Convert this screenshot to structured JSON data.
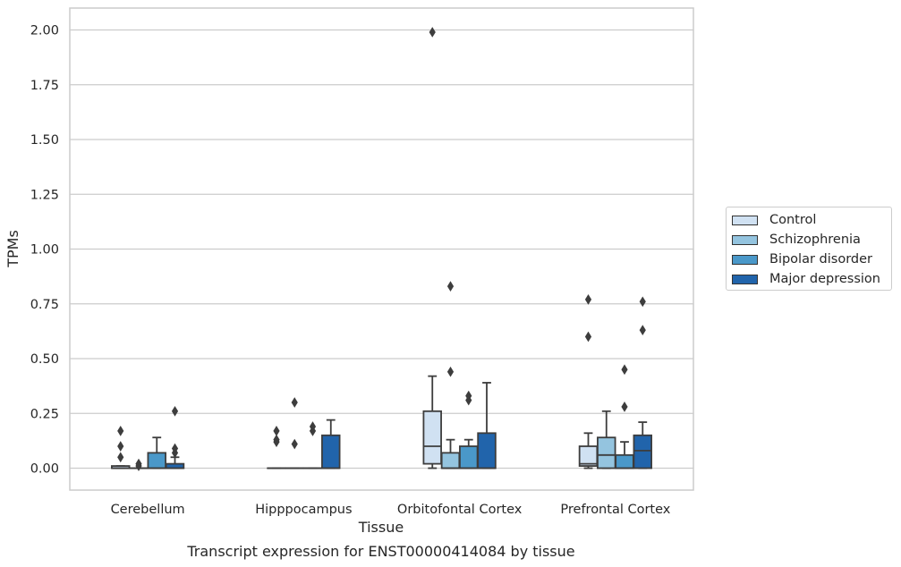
{
  "chart_data": {
    "type": "box",
    "title": "Transcript expression for ENST00000414084 by tissue",
    "xlabel": "Tissue",
    "ylabel": "TPMs",
    "ylim": [
      -0.1,
      2.1
    ],
    "yticks": [
      "0.00",
      "0.25",
      "0.50",
      "0.75",
      "1.00",
      "1.25",
      "1.50",
      "1.75",
      "2.00"
    ],
    "grid": true,
    "legend_position": "right",
    "categories": [
      "Cerebellum",
      "Hipppocampus",
      "Orbitofontal Cortex",
      "Prefrontal Cortex"
    ],
    "series": [
      {
        "name": "Control",
        "color": "#d0e1f2",
        "boxes": [
          {
            "min": 0.0,
            "q1": 0.0,
            "median": 0.0,
            "q3": 0.01,
            "max": 0.01,
            "outliers": [
              0.05,
              0.1,
              0.17
            ]
          },
          {
            "min": 0.0,
            "q1": 0.0,
            "median": 0.0,
            "q3": 0.0,
            "max": 0.0,
            "outliers": [
              0.12,
              0.13,
              0.17
            ]
          },
          {
            "min": 0.0,
            "q1": 0.02,
            "median": 0.1,
            "q3": 0.26,
            "max": 0.42,
            "outliers": [
              1.99
            ]
          },
          {
            "min": 0.0,
            "q1": 0.01,
            "median": 0.02,
            "q3": 0.1,
            "max": 0.16,
            "outliers": [
              0.6,
              0.77
            ]
          }
        ]
      },
      {
        "name": "Schizophrenia",
        "color": "#94c4df",
        "boxes": [
          {
            "min": 0.0,
            "q1": 0.0,
            "median": 0.0,
            "q3": 0.0,
            "max": 0.0,
            "outliers": [
              0.01,
              0.02
            ]
          },
          {
            "min": 0.0,
            "q1": 0.0,
            "median": 0.0,
            "q3": 0.0,
            "max": 0.0,
            "outliers": [
              0.11,
              0.3
            ]
          },
          {
            "min": 0.0,
            "q1": 0.0,
            "median": 0.0,
            "q3": 0.07,
            "max": 0.13,
            "outliers": [
              0.44,
              0.83
            ]
          },
          {
            "min": 0.0,
            "q1": 0.0,
            "median": 0.06,
            "q3": 0.14,
            "max": 0.26,
            "outliers": []
          }
        ]
      },
      {
        "name": "Bipolar disorder",
        "color": "#4a98c9",
        "boxes": [
          {
            "min": 0.0,
            "q1": 0.0,
            "median": 0.0,
            "q3": 0.07,
            "max": 0.14,
            "outliers": []
          },
          {
            "min": 0.0,
            "q1": 0.0,
            "median": 0.0,
            "q3": 0.0,
            "max": 0.0,
            "outliers": [
              0.17,
              0.19
            ]
          },
          {
            "min": 0.0,
            "q1": 0.0,
            "median": 0.0,
            "q3": 0.1,
            "max": 0.13,
            "outliers": [
              0.31,
              0.33
            ]
          },
          {
            "min": 0.0,
            "q1": 0.0,
            "median": 0.0,
            "q3": 0.06,
            "max": 0.12,
            "outliers": [
              0.28,
              0.45
            ]
          }
        ]
      },
      {
        "name": "Major depression",
        "color": "#2164ab",
        "boxes": [
          {
            "min": 0.0,
            "q1": 0.0,
            "median": 0.0,
            "q3": 0.02,
            "max": 0.05,
            "outliers": [
              0.07,
              0.09,
              0.26
            ]
          },
          {
            "min": 0.0,
            "q1": 0.0,
            "median": 0.0,
            "q3": 0.15,
            "max": 0.22,
            "outliers": []
          },
          {
            "min": 0.0,
            "q1": 0.0,
            "median": 0.0,
            "q3": 0.16,
            "max": 0.39,
            "outliers": []
          },
          {
            "min": 0.0,
            "q1": 0.0,
            "median": 0.08,
            "q3": 0.15,
            "max": 0.21,
            "outliers": [
              0.63,
              0.76
            ]
          }
        ]
      }
    ]
  }
}
